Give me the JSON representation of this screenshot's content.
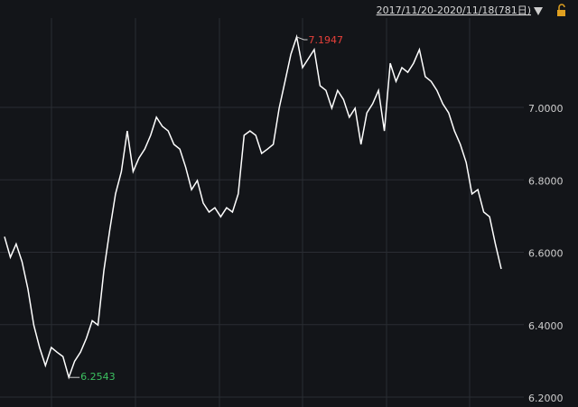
{
  "chart_data": {
    "type": "line",
    "header": "2017/11/20-2020/11/18(781日)",
    "color": "#ffffff",
    "grid": true,
    "ylim": [
      6.1726,
      7.2469
    ],
    "yticks": [
      {
        "value": 6.2,
        "label": "6.2000"
      },
      {
        "value": 6.4,
        "label": "6.4000"
      },
      {
        "value": 6.6,
        "label": "6.6000"
      },
      {
        "value": 6.8,
        "label": "6.8000"
      },
      {
        "value": 7.0,
        "label": "7.0000"
      }
    ],
    "values": [
      6.643,
      6.586,
      6.623,
      6.574,
      6.499,
      6.399,
      6.337,
      6.287,
      6.337,
      6.324,
      6.312,
      6.2543,
      6.299,
      6.324,
      6.362,
      6.411,
      6.399,
      6.549,
      6.661,
      6.761,
      6.823,
      6.935,
      6.823,
      6.86,
      6.885,
      6.923,
      6.973,
      6.948,
      6.935,
      6.898,
      6.885,
      6.835,
      6.773,
      6.798,
      6.736,
      6.711,
      6.723,
      6.698,
      6.723,
      6.711,
      6.761,
      6.923,
      6.935,
      6.923,
      6.873,
      6.885,
      6.898,
      6.998,
      7.072,
      7.147,
      7.1947,
      7.11,
      7.135,
      7.16,
      7.06,
      7.047,
      6.998,
      7.047,
      7.022,
      6.973,
      6.998,
      6.898,
      6.985,
      7.01,
      7.047,
      6.935,
      7.122,
      7.072,
      7.11,
      7.097,
      7.122,
      7.16,
      7.085,
      7.072,
      7.047,
      7.01,
      6.985,
      6.935,
      6.898,
      6.848,
      6.761,
      6.773,
      6.711,
      6.698,
      6.623,
      6.554
    ],
    "annotations": [
      {
        "value": 7.1947,
        "color": "#e8403a"
      },
      {
        "value": 6.2543,
        "color": "#3cc060"
      }
    ]
  }
}
